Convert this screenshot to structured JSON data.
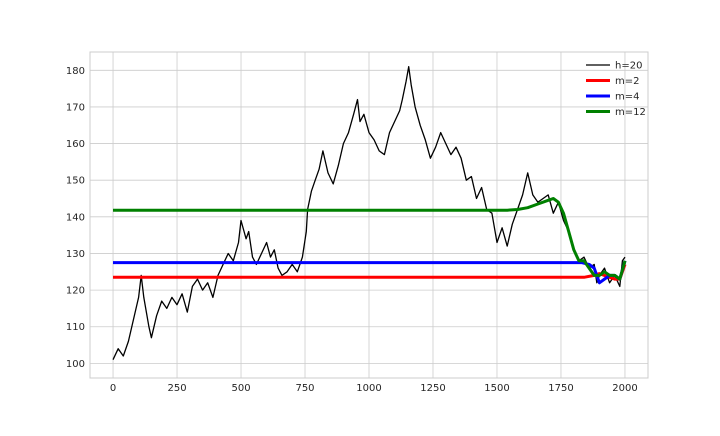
{
  "chart_data": {
    "type": "line",
    "title": "",
    "xlabel": "",
    "ylabel": "",
    "xlim": [
      -90,
      2090
    ],
    "ylim": [
      96,
      185
    ],
    "xticks": [
      0,
      250,
      500,
      750,
      1000,
      1250,
      1500,
      1750,
      2000
    ],
    "yticks": [
      100,
      110,
      120,
      130,
      140,
      150,
      160,
      170,
      180
    ],
    "grid": true,
    "legend_position": "top-right",
    "series": [
      {
        "name": "h=20",
        "color": "#000000",
        "linewidth": 1.3,
        "points": [
          [
            0,
            101
          ],
          [
            20,
            104
          ],
          [
            40,
            102
          ],
          [
            60,
            106
          ],
          [
            80,
            112
          ],
          [
            100,
            118
          ],
          [
            110,
            124
          ],
          [
            120,
            118
          ],
          [
            140,
            110
          ],
          [
            150,
            107
          ],
          [
            170,
            113
          ],
          [
            190,
            117
          ],
          [
            210,
            115
          ],
          [
            230,
            118
          ],
          [
            250,
            116
          ],
          [
            270,
            119
          ],
          [
            290,
            114
          ],
          [
            310,
            121
          ],
          [
            330,
            123
          ],
          [
            350,
            120
          ],
          [
            370,
            122
          ],
          [
            390,
            118
          ],
          [
            410,
            124
          ],
          [
            430,
            127
          ],
          [
            450,
            130
          ],
          [
            470,
            128
          ],
          [
            490,
            133
          ],
          [
            500,
            139
          ],
          [
            520,
            134
          ],
          [
            530,
            136
          ],
          [
            545,
            129
          ],
          [
            560,
            127
          ],
          [
            580,
            130
          ],
          [
            600,
            133
          ],
          [
            615,
            129
          ],
          [
            630,
            131
          ],
          [
            645,
            126
          ],
          [
            660,
            124
          ],
          [
            680,
            125
          ],
          [
            700,
            127
          ],
          [
            720,
            125
          ],
          [
            740,
            129
          ],
          [
            755,
            136
          ],
          [
            760,
            142
          ],
          [
            775,
            147
          ],
          [
            790,
            150
          ],
          [
            805,
            153
          ],
          [
            820,
            158
          ],
          [
            840,
            152
          ],
          [
            860,
            149
          ],
          [
            880,
            154
          ],
          [
            900,
            160
          ],
          [
            920,
            163
          ],
          [
            940,
            168
          ],
          [
            955,
            172
          ],
          [
            965,
            166
          ],
          [
            980,
            168
          ],
          [
            1000,
            163
          ],
          [
            1020,
            161
          ],
          [
            1040,
            158
          ],
          [
            1060,
            157
          ],
          [
            1080,
            163
          ],
          [
            1100,
            166
          ],
          [
            1120,
            169
          ],
          [
            1130,
            172
          ],
          [
            1145,
            177
          ],
          [
            1155,
            181
          ],
          [
            1165,
            176
          ],
          [
            1180,
            170
          ],
          [
            1200,
            165
          ],
          [
            1220,
            161
          ],
          [
            1240,
            156
          ],
          [
            1260,
            159
          ],
          [
            1280,
            163
          ],
          [
            1300,
            160
          ],
          [
            1320,
            157
          ],
          [
            1340,
            159
          ],
          [
            1360,
            156
          ],
          [
            1380,
            150
          ],
          [
            1400,
            151
          ],
          [
            1420,
            145
          ],
          [
            1440,
            148
          ],
          [
            1460,
            142
          ],
          [
            1480,
            141
          ],
          [
            1500,
            133
          ],
          [
            1520,
            137
          ],
          [
            1540,
            132
          ],
          [
            1560,
            138
          ],
          [
            1580,
            142
          ],
          [
            1600,
            146
          ],
          [
            1620,
            152
          ],
          [
            1640,
            146
          ],
          [
            1660,
            144
          ],
          [
            1680,
            145
          ],
          [
            1700,
            146
          ],
          [
            1720,
            141
          ],
          [
            1740,
            144
          ],
          [
            1760,
            139
          ],
          [
            1780,
            136
          ],
          [
            1800,
            131
          ],
          [
            1820,
            128
          ],
          [
            1840,
            129
          ],
          [
            1860,
            126
          ],
          [
            1880,
            127
          ],
          [
            1890,
            122
          ],
          [
            1900,
            124
          ],
          [
            1920,
            126
          ],
          [
            1940,
            122
          ],
          [
            1960,
            124
          ],
          [
            1980,
            121
          ],
          [
            1990,
            128
          ],
          [
            2000,
            129
          ]
        ]
      },
      {
        "name": "m=2",
        "color": "#ff0000",
        "linewidth": 3,
        "points": [
          [
            0,
            123.5
          ],
          [
            1800,
            123.5
          ],
          [
            1840,
            123.5
          ],
          [
            1880,
            124
          ],
          [
            1900,
            124.5
          ],
          [
            1920,
            124
          ],
          [
            1940,
            123.5
          ],
          [
            1960,
            123
          ],
          [
            1980,
            123
          ],
          [
            2000,
            127
          ]
        ]
      },
      {
        "name": "m=4",
        "color": "#0000ff",
        "linewidth": 3,
        "points": [
          [
            0,
            127.5
          ],
          [
            1830,
            127.5
          ],
          [
            1860,
            127
          ],
          [
            1880,
            126
          ],
          [
            1900,
            122
          ],
          [
            1920,
            123
          ],
          [
            1940,
            124
          ],
          [
            1960,
            124
          ],
          [
            1980,
            123
          ],
          [
            2000,
            128
          ]
        ]
      },
      {
        "name": "m=12",
        "color": "#008000",
        "linewidth": 3,
        "points": [
          [
            0,
            141.8
          ],
          [
            1540,
            141.8
          ],
          [
            1580,
            142
          ],
          [
            1620,
            142.5
          ],
          [
            1660,
            143.5
          ],
          [
            1700,
            144.5
          ],
          [
            1720,
            145
          ],
          [
            1740,
            144
          ],
          [
            1760,
            141
          ],
          [
            1780,
            136
          ],
          [
            1800,
            131
          ],
          [
            1820,
            128
          ],
          [
            1840,
            128
          ],
          [
            1860,
            126
          ],
          [
            1880,
            124
          ],
          [
            1900,
            124
          ],
          [
            1920,
            125
          ],
          [
            1940,
            124
          ],
          [
            1960,
            124
          ],
          [
            1980,
            123
          ],
          [
            2000,
            128
          ]
        ]
      }
    ]
  }
}
